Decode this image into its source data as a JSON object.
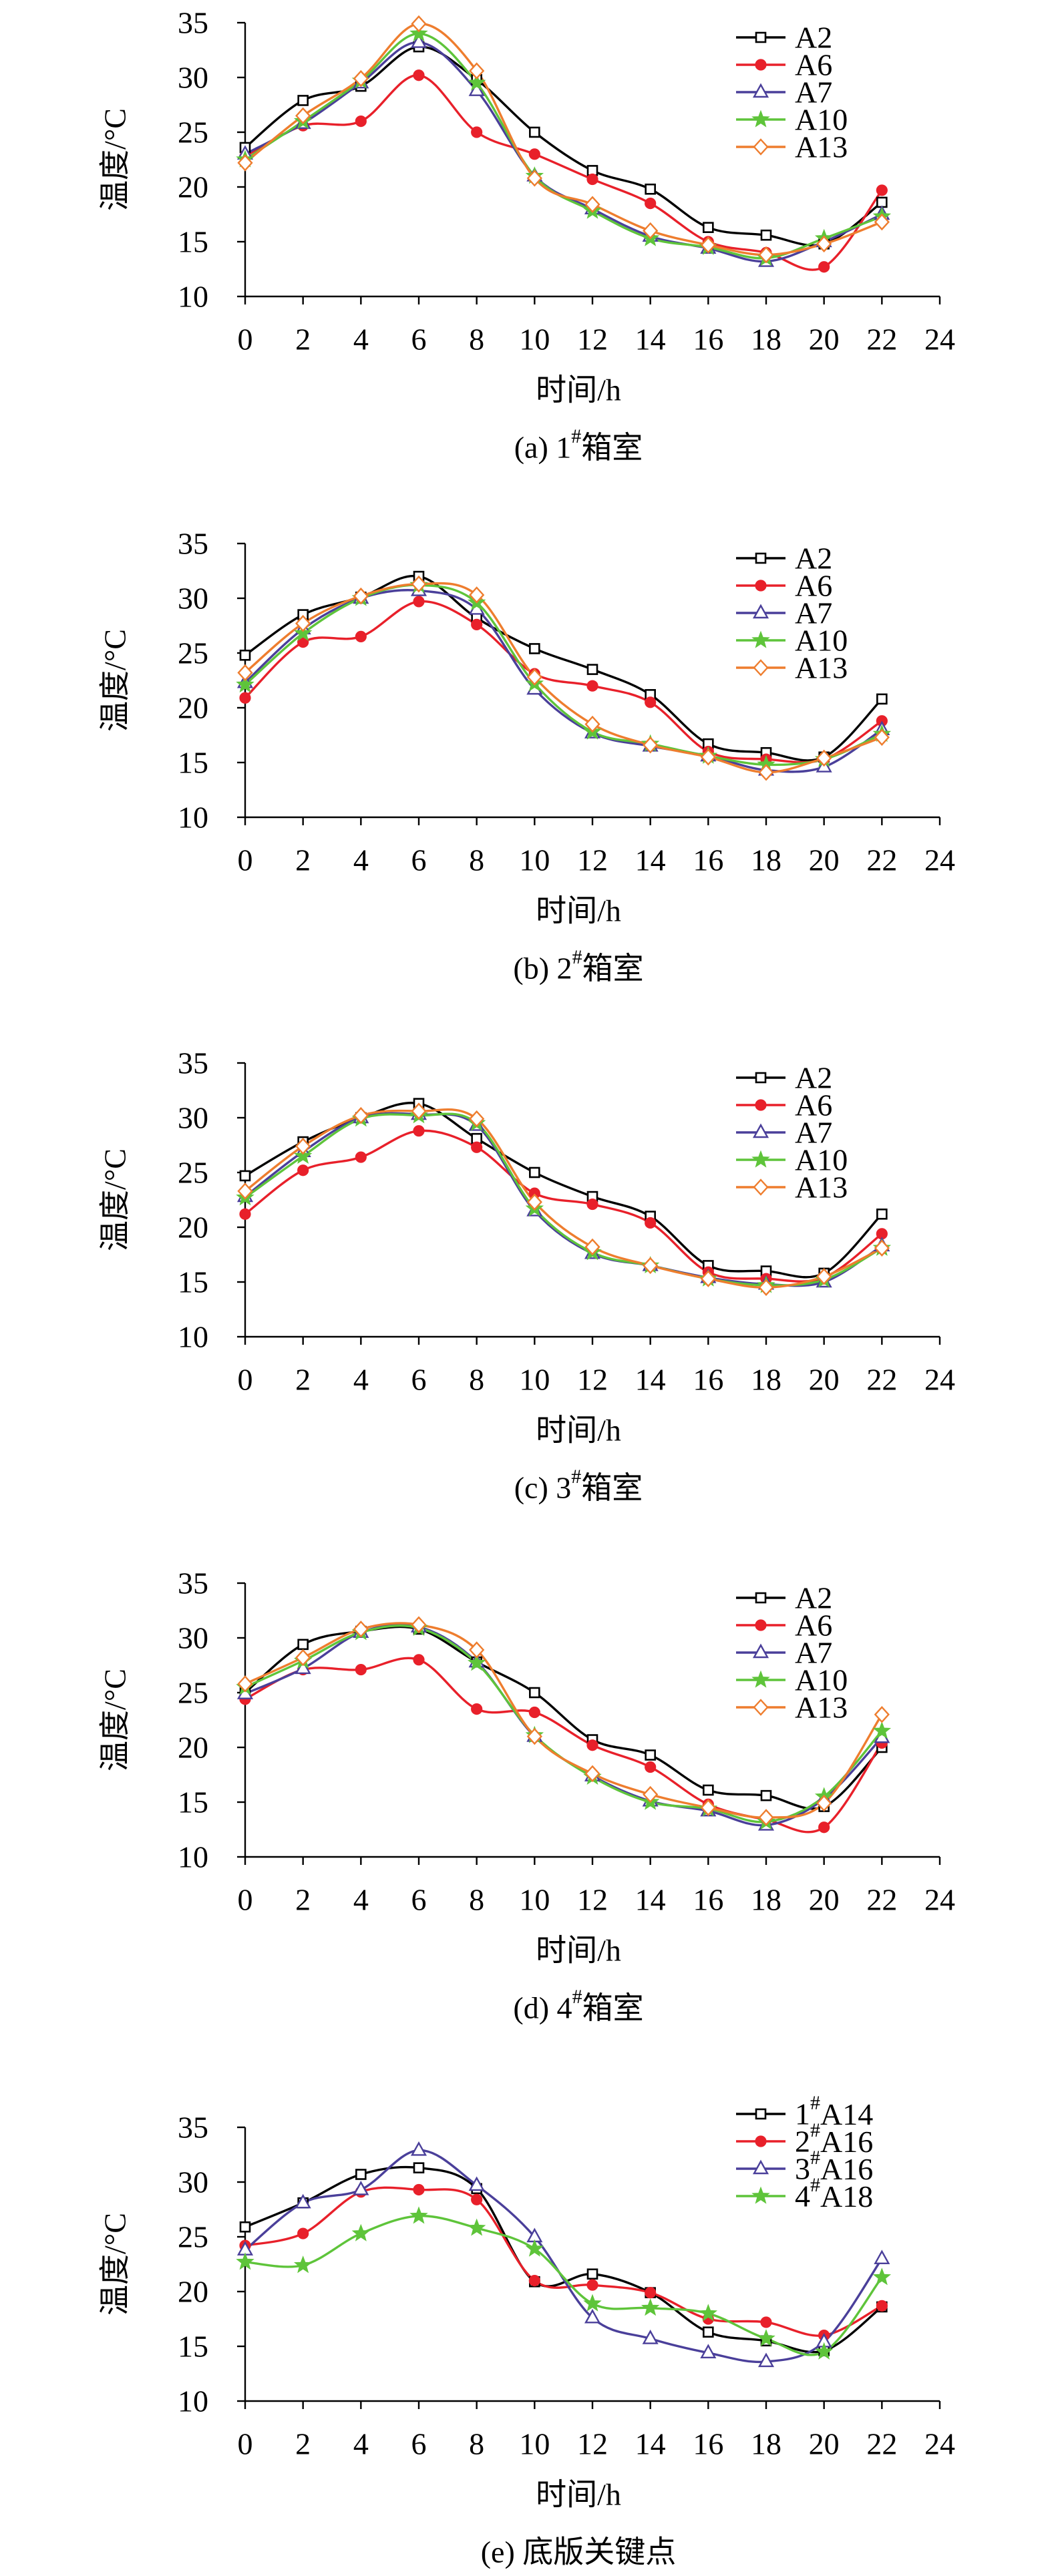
{
  "chart_data": [
    {
      "type": "line",
      "caption": "(a) 1#箱室",
      "xlabel": "时间/h",
      "ylabel": "温度/°C",
      "xlim": [
        0,
        24
      ],
      "ylim": [
        10,
        35
      ],
      "x_ticks": [
        0,
        2,
        4,
        6,
        8,
        10,
        12,
        14,
        16,
        18,
        20,
        22,
        24
      ],
      "y_ticks": [
        10,
        15,
        20,
        25,
        30,
        35
      ],
      "grid": false,
      "legend": "top-right",
      "x": [
        0,
        2,
        4,
        6,
        8,
        10,
        12,
        14,
        16,
        18,
        20,
        22
      ],
      "series": [
        {
          "name": "A2",
          "color": "#000000",
          "marker": "square-open",
          "values": [
            23.6,
            27.9,
            29.2,
            32.8,
            29.8,
            25.0,
            21.5,
            19.8,
            16.3,
            15.6,
            14.8,
            18.6
          ]
        },
        {
          "name": "A6",
          "color": "#e8202a",
          "marker": "circle-filled",
          "values": [
            22.8,
            25.6,
            26.0,
            30.2,
            25.0,
            23.0,
            20.7,
            18.5,
            15.0,
            14.0,
            12.7,
            19.7
          ]
        },
        {
          "name": "A7",
          "color": "#4a3f9a",
          "marker": "triangle-open",
          "values": [
            23.0,
            25.8,
            29.5,
            33.2,
            28.8,
            21.0,
            18.0,
            15.5,
            14.4,
            13.2,
            15.0,
            17.5
          ]
        },
        {
          "name": "A10",
          "color": "#5ec43a",
          "marker": "star",
          "values": [
            22.5,
            26.0,
            29.7,
            34.0,
            29.5,
            21.0,
            17.8,
            15.3,
            14.5,
            13.5,
            15.3,
            17.3
          ]
        },
        {
          "name": "A13",
          "color": "#ee7d2e",
          "marker": "diamond-open",
          "values": [
            22.2,
            26.5,
            29.9,
            34.9,
            30.6,
            20.8,
            18.4,
            16.0,
            14.7,
            13.8,
            14.8,
            16.8
          ]
        }
      ]
    },
    {
      "type": "line",
      "caption": "(b) 2#箱室",
      "xlabel": "时间/h",
      "ylabel": "温度/°C",
      "xlim": [
        0,
        24
      ],
      "ylim": [
        10,
        35
      ],
      "x_ticks": [
        0,
        2,
        4,
        6,
        8,
        10,
        12,
        14,
        16,
        18,
        20,
        22,
        24
      ],
      "y_ticks": [
        10,
        15,
        20,
        25,
        30,
        35
      ],
      "grid": false,
      "legend": "top-right",
      "x": [
        0,
        2,
        4,
        6,
        8,
        10,
        12,
        14,
        16,
        18,
        20,
        22
      ],
      "series": [
        {
          "name": "A2",
          "color": "#000000",
          "marker": "square-open",
          "values": [
            24.8,
            28.5,
            30.1,
            32.0,
            28.2,
            25.4,
            23.5,
            21.2,
            16.7,
            15.9,
            15.5,
            20.8
          ]
        },
        {
          "name": "A6",
          "color": "#e8202a",
          "marker": "circle-filled",
          "values": [
            20.9,
            26.0,
            26.5,
            29.7,
            27.6,
            23.1,
            22.0,
            20.5,
            16.0,
            15.3,
            15.3,
            18.8
          ]
        },
        {
          "name": "A7",
          "color": "#4a3f9a",
          "marker": "triangle-open",
          "values": [
            22.3,
            27.2,
            30.0,
            30.7,
            29.0,
            21.7,
            17.7,
            16.5,
            15.6,
            14.3,
            14.6,
            18.0
          ]
        },
        {
          "name": "A10",
          "color": "#5ec43a",
          "marker": "star",
          "values": [
            22.1,
            26.8,
            30.0,
            31.2,
            29.6,
            22.2,
            17.8,
            16.7,
            15.6,
            14.8,
            15.3,
            17.6
          ]
        },
        {
          "name": "A13",
          "color": "#ee7d2e",
          "marker": "diamond-open",
          "values": [
            23.2,
            27.7,
            30.2,
            31.3,
            30.3,
            22.8,
            18.5,
            16.6,
            15.5,
            14.1,
            15.4,
            17.3
          ]
        }
      ]
    },
    {
      "type": "line",
      "caption": "(c) 3#箱室",
      "xlabel": "时间/h",
      "ylabel": "温度/°C",
      "xlim": [
        0,
        24
      ],
      "ylim": [
        10,
        35
      ],
      "x_ticks": [
        0,
        2,
        4,
        6,
        8,
        10,
        12,
        14,
        16,
        18,
        20,
        22,
        24
      ],
      "y_ticks": [
        10,
        15,
        20,
        25,
        30,
        35
      ],
      "grid": false,
      "legend": "top-right",
      "x": [
        0,
        2,
        4,
        6,
        8,
        10,
        12,
        14,
        16,
        18,
        20,
        22
      ],
      "series": [
        {
          "name": "A2",
          "color": "#000000",
          "marker": "square-open",
          "values": [
            24.7,
            27.8,
            30.0,
            31.3,
            28.1,
            25.0,
            22.8,
            21.0,
            16.5,
            16.0,
            15.8,
            21.2
          ]
        },
        {
          "name": "A6",
          "color": "#e8202a",
          "marker": "circle-filled",
          "values": [
            21.2,
            25.2,
            26.4,
            28.8,
            27.3,
            23.1,
            22.1,
            20.4,
            15.9,
            15.3,
            15.4,
            19.4
          ]
        },
        {
          "name": "A7",
          "color": "#4a3f9a",
          "marker": "triangle-open",
          "values": [
            22.8,
            26.9,
            30.0,
            30.3,
            29.3,
            21.5,
            17.6,
            16.5,
            15.4,
            14.8,
            15.0,
            18.3
          ]
        },
        {
          "name": "A10",
          "color": "#5ec43a",
          "marker": "star",
          "values": [
            22.7,
            26.5,
            29.9,
            30.2,
            29.5,
            21.7,
            17.7,
            16.5,
            15.3,
            14.7,
            15.2,
            18.1
          ]
        },
        {
          "name": "A13",
          "color": "#ee7d2e",
          "marker": "diamond-open",
          "values": [
            23.3,
            27.4,
            30.2,
            30.6,
            29.9,
            22.3,
            18.2,
            16.5,
            15.3,
            14.5,
            15.5,
            18.1
          ]
        }
      ]
    },
    {
      "type": "line",
      "caption": "(d) 4#箱室",
      "xlabel": "时间/h",
      "ylabel": "温度/°C",
      "xlim": [
        0,
        24
      ],
      "ylim": [
        10,
        35
      ],
      "x_ticks": [
        0,
        2,
        4,
        6,
        8,
        10,
        12,
        14,
        16,
        18,
        20,
        22,
        24
      ],
      "y_ticks": [
        10,
        15,
        20,
        25,
        30,
        35
      ],
      "grid": false,
      "legend": "top-right",
      "x": [
        0,
        2,
        4,
        6,
        8,
        10,
        12,
        14,
        16,
        18,
        20,
        22
      ],
      "series": [
        {
          "name": "A2",
          "color": "#000000",
          "marker": "square-open",
          "values": [
            25.0,
            29.4,
            30.6,
            30.8,
            27.8,
            25.0,
            20.7,
            19.3,
            16.1,
            15.6,
            14.6,
            20.0
          ]
        },
        {
          "name": "A6",
          "color": "#e8202a",
          "marker": "circle-filled",
          "values": [
            24.4,
            27.1,
            27.1,
            28.0,
            23.5,
            23.2,
            20.2,
            18.2,
            14.8,
            13.4,
            12.7,
            20.4
          ]
        },
        {
          "name": "A7",
          "color": "#4a3f9a",
          "marker": "triangle-open",
          "values": [
            24.9,
            27.2,
            30.5,
            31.0,
            27.8,
            21.0,
            17.4,
            15.1,
            14.2,
            12.9,
            15.3,
            20.9
          ]
        },
        {
          "name": "A10",
          "color": "#5ec43a",
          "marker": "star",
          "values": [
            25.5,
            27.9,
            30.5,
            30.9,
            27.7,
            21.1,
            17.3,
            15.0,
            14.4,
            13.2,
            15.5,
            21.5
          ]
        },
        {
          "name": "A13",
          "color": "#ee7d2e",
          "marker": "diamond-open",
          "values": [
            25.8,
            28.2,
            30.8,
            31.2,
            28.9,
            21.0,
            17.6,
            15.7,
            14.5,
            13.6,
            14.9,
            23.0
          ]
        }
      ]
    },
    {
      "type": "line",
      "caption": "(e) 底版关键点",
      "xlabel": "时间/h",
      "ylabel": "温度/°C",
      "xlim": [
        0,
        24
      ],
      "ylim": [
        10,
        35
      ],
      "x_ticks": [
        0,
        2,
        4,
        6,
        8,
        10,
        12,
        14,
        16,
        18,
        20,
        22,
        24
      ],
      "y_ticks": [
        10,
        15,
        20,
        25,
        30,
        35
      ],
      "grid": false,
      "legend": "top-right",
      "x": [
        0,
        2,
        4,
        6,
        8,
        10,
        12,
        14,
        16,
        18,
        20,
        22
      ],
      "series": [
        {
          "name": "1#A14",
          "color": "#000000",
          "marker": "square-open",
          "values": [
            25.9,
            28.1,
            30.7,
            31.3,
            29.4,
            20.9,
            21.6,
            19.9,
            16.3,
            15.5,
            14.6,
            18.6
          ]
        },
        {
          "name": "2#A16",
          "color": "#e8202a",
          "marker": "circle-filled",
          "values": [
            24.2,
            25.3,
            29.1,
            29.3,
            28.4,
            21.0,
            20.6,
            19.9,
            17.5,
            17.2,
            16.0,
            18.7
          ]
        },
        {
          "name": "3#A16",
          "color": "#4a3f9a",
          "marker": "triangle-open",
          "values": [
            23.8,
            28.1,
            29.3,
            32.9,
            29.7,
            25.0,
            17.6,
            15.7,
            14.4,
            13.6,
            15.4,
            23.0
          ]
        },
        {
          "name": "4#A18",
          "color": "#5ec43a",
          "marker": "star",
          "values": [
            22.7,
            22.4,
            25.3,
            26.9,
            25.8,
            23.9,
            18.9,
            18.5,
            18.0,
            15.7,
            14.5,
            21.3
          ]
        }
      ]
    }
  ]
}
